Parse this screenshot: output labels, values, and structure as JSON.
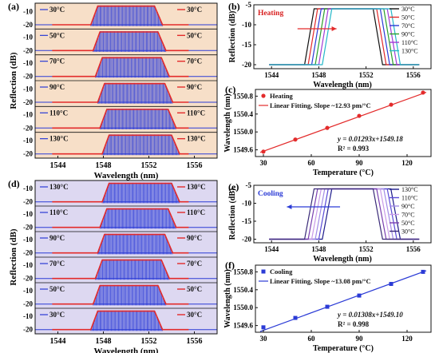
{
  "colors": {
    "heat_bg": "#f7dfc8",
    "cool_bg": "#ddd8f1",
    "blue": "#2b3bd6",
    "red": "#e32b2b",
    "heat_text": "#d81f1f",
    "cool_text": "#2b3bd6"
  },
  "chart_data": [
    {
      "id": "a",
      "panel_label": "(a)",
      "type": "line",
      "title": "",
      "xlabel": "Wavelength (nm)",
      "ylabel": "Reflection (dB)",
      "xlim": [
        1542,
        1558
      ],
      "ylim": [
        -22,
        -5
      ],
      "x_ticks": [
        "1544",
        "1548",
        "1552",
        "1556"
      ],
      "y_ticks": [
        "-10",
        "-20"
      ],
      "series": [
        {
          "name": "30°C",
          "x": [
            1543.5,
            1546.9,
            1547.5,
            1552.5,
            1553.2,
            1555.5
          ],
          "values": [
            -20,
            -20,
            -6,
            -6,
            -20,
            -20
          ]
        },
        {
          "name": "50°C",
          "x": [
            1543.5,
            1547.1,
            1547.7,
            1552.8,
            1553.5,
            1555.5
          ],
          "values": [
            -20,
            -20,
            -6,
            -6,
            -20,
            -20
          ]
        },
        {
          "name": "70°C",
          "x": [
            1543.5,
            1547.3,
            1547.9,
            1553.1,
            1553.8,
            1555.5
          ],
          "values": [
            -20,
            -20,
            -6,
            -6,
            -20,
            -20
          ]
        },
        {
          "name": "90°C",
          "x": [
            1543.5,
            1547.5,
            1548.1,
            1553.4,
            1554.1,
            1555.5
          ],
          "values": [
            -20,
            -20,
            -6,
            -6,
            -20,
            -20
          ]
        },
        {
          "name": "110°C",
          "x": [
            1543.5,
            1547.7,
            1548.3,
            1553.7,
            1554.4,
            1555.5
          ],
          "values": [
            -20,
            -20,
            -6,
            -6,
            -20,
            -20
          ]
        },
        {
          "name": "130°C",
          "x": [
            1543.5,
            1547.9,
            1548.5,
            1554.0,
            1554.7,
            1555.5
          ],
          "values": [
            -20,
            -20,
            -6,
            -6,
            -20,
            -20
          ]
        }
      ]
    },
    {
      "id": "b",
      "panel_label": "(b)",
      "type": "line",
      "title": "Heating",
      "xlabel": "Wavelength (nm)",
      "ylabel": "Reflection (dB)",
      "xlim": [
        1542.5,
        1557.5
      ],
      "ylim": [
        -21,
        -5
      ],
      "x_ticks": [
        1544,
        1548,
        1552,
        1556
      ],
      "y_ticks": [
        -5,
        -10,
        -15,
        -20
      ],
      "legend_position": "right",
      "series": [
        {
          "name": "30°C",
          "color": "#111111",
          "x": [
            1543.8,
            1546.8,
            1547.6,
            1552.6,
            1553.4,
            1556.5
          ],
          "values": [
            -20,
            -20,
            -6,
            -6,
            -20,
            -20
          ]
        },
        {
          "name": "50°C",
          "color": "#e32b2b",
          "x": [
            1543.8,
            1547.1,
            1547.9,
            1552.9,
            1553.7,
            1556.5
          ],
          "values": [
            -20,
            -20,
            -6,
            -6,
            -20,
            -20
          ]
        },
        {
          "name": "70°C",
          "color": "#2b3bd6",
          "x": [
            1543.8,
            1547.4,
            1548.2,
            1553.2,
            1554.0,
            1556.5
          ],
          "values": [
            -20,
            -20,
            -6,
            -6,
            -20,
            -20
          ]
        },
        {
          "name": "90°C",
          "color": "#2ba02b",
          "x": [
            1543.8,
            1547.7,
            1548.5,
            1553.5,
            1554.3,
            1556.5
          ],
          "values": [
            -20,
            -20,
            -6,
            -6,
            -20,
            -20
          ]
        },
        {
          "name": "110°C",
          "color": "#a23bd6",
          "x": [
            1543.8,
            1548.0,
            1548.8,
            1553.8,
            1554.6,
            1556.5
          ],
          "values": [
            -20,
            -20,
            -6,
            -6,
            -20,
            -20
          ]
        },
        {
          "name": "130°C",
          "color": "#25b8c9",
          "x": [
            1543.8,
            1548.3,
            1549.1,
            1554.1,
            1554.9,
            1556.5
          ],
          "values": [
            -20,
            -20,
            -6,
            -6,
            -20,
            -20
          ]
        }
      ]
    },
    {
      "id": "c",
      "panel_label": "(c)",
      "type": "scatter",
      "title": "",
      "xlabel": "Temperature (°C)",
      "ylabel": "Wavelength (nm)",
      "xlim": [
        25,
        135
      ],
      "ylim": [
        1549.45,
        1550.95
      ],
      "x_ticks": [
        30,
        60,
        90,
        120
      ],
      "y_ticks": [
        1549.6,
        1550.0,
        1550.4,
        1550.8
      ],
      "y_tick_labels": [
        "1549.6",
        "1550.0",
        "1550.4",
        "1550.8"
      ],
      "series": [
        {
          "name": "Heating",
          "x": [
            30,
            50,
            70,
            90,
            110,
            130
          ],
          "values": [
            1549.56,
            1549.83,
            1550.09,
            1550.36,
            1550.61,
            1550.88
          ]
        }
      ],
      "fit": {
        "label": "Linear Fitting, Slope ~12.93 pm/°C",
        "slope": 0.01293,
        "intercept": 1549.18,
        "equation": "y = 0.01293x+1549.18",
        "r2": "R² = 0.993"
      }
    },
    {
      "id": "d",
      "panel_label": "(d)",
      "type": "line",
      "title": "",
      "xlabel": "Wavelength (nm)",
      "ylabel": "Reflection (dB)",
      "xlim": [
        1542,
        1558
      ],
      "ylim": [
        -22,
        -5
      ],
      "x_ticks": [
        "1544",
        "1548",
        "1552",
        "1556"
      ],
      "y_ticks": [
        "-10",
        "-20"
      ],
      "series": [
        {
          "name": "130°C",
          "x": [
            1543.5,
            1547.9,
            1548.5,
            1554.0,
            1554.7,
            1555.5
          ],
          "values": [
            -20,
            -20,
            -6,
            -6,
            -20,
            -20
          ]
        },
        {
          "name": "110°C",
          "x": [
            1543.5,
            1547.7,
            1548.3,
            1553.7,
            1554.4,
            1555.5
          ],
          "values": [
            -20,
            -20,
            -6,
            -6,
            -20,
            -20
          ]
        },
        {
          "name": "90°C",
          "x": [
            1543.5,
            1547.5,
            1548.1,
            1553.4,
            1554.1,
            1555.5
          ],
          "values": [
            -20,
            -20,
            -6,
            -6,
            -20,
            -20
          ]
        },
        {
          "name": "70°C",
          "x": [
            1543.5,
            1547.3,
            1547.9,
            1553.1,
            1553.8,
            1555.5
          ],
          "values": [
            -20,
            -20,
            -6,
            -6,
            -20,
            -20
          ]
        },
        {
          "name": "50°C",
          "x": [
            1543.5,
            1547.1,
            1547.7,
            1552.8,
            1553.5,
            1555.5
          ],
          "values": [
            -20,
            -20,
            -6,
            -6,
            -20,
            -20
          ]
        },
        {
          "name": "30°C",
          "x": [
            1543.5,
            1546.9,
            1547.5,
            1552.5,
            1553.2,
            1555.5
          ],
          "values": [
            -20,
            -20,
            -6,
            -6,
            -20,
            -20
          ]
        }
      ]
    },
    {
      "id": "e",
      "panel_label": "(e)",
      "type": "line",
      "title": "Cooling",
      "xlabel": "Wavelength (nm)",
      "ylabel": "Reflection (dB)",
      "xlim": [
        1542.5,
        1557.5
      ],
      "ylim": [
        -21,
        -5
      ],
      "x_ticks": [
        1544,
        1548,
        1552,
        1556
      ],
      "y_ticks": [
        -5,
        -10,
        -15,
        -20
      ],
      "legend_position": "right",
      "series": [
        {
          "name": "130°C",
          "color": "#1c1a8a",
          "x": [
            1543.8,
            1548.3,
            1549.1,
            1554.1,
            1554.9,
            1556.5
          ],
          "values": [
            -20,
            -20,
            -6,
            -6,
            -20,
            -20
          ]
        },
        {
          "name": "110°C",
          "color": "#5a4bd6",
          "x": [
            1543.8,
            1548.0,
            1548.8,
            1553.8,
            1554.6,
            1556.5
          ],
          "values": [
            -20,
            -20,
            -6,
            -6,
            -20,
            -20
          ]
        },
        {
          "name": "90°C",
          "color": "#a38ce6",
          "x": [
            1543.8,
            1547.7,
            1548.5,
            1553.5,
            1554.3,
            1556.5
          ],
          "values": [
            -20,
            -20,
            -6,
            -6,
            -20,
            -20
          ]
        },
        {
          "name": "70°C",
          "color": "#c99be8",
          "x": [
            1543.8,
            1547.4,
            1548.2,
            1553.2,
            1554.0,
            1556.5
          ],
          "values": [
            -20,
            -20,
            -6,
            -6,
            -20,
            -20
          ]
        },
        {
          "name": "50°C",
          "color": "#7a3fb0",
          "x": [
            1543.8,
            1547.1,
            1547.9,
            1552.9,
            1553.7,
            1556.5
          ],
          "values": [
            -20,
            -20,
            -6,
            -6,
            -20,
            -20
          ]
        },
        {
          "name": "30°C",
          "color": "#3a2a78",
          "x": [
            1543.8,
            1546.8,
            1547.6,
            1552.6,
            1553.4,
            1556.5
          ],
          "values": [
            -20,
            -20,
            -6,
            -6,
            -20,
            -20
          ]
        }
      ]
    },
    {
      "id": "f",
      "panel_label": "(f)",
      "type": "scatter",
      "title": "",
      "xlabel": "Temperature (°C)",
      "ylabel": "Wavelength (nm)",
      "xlim": [
        25,
        135
      ],
      "ylim": [
        1549.45,
        1550.95
      ],
      "x_ticks": [
        30,
        60,
        90,
        120
      ],
      "y_ticks": [
        1549.6,
        1550.0,
        1550.4,
        1550.8
      ],
      "y_tick_labels": [
        "1549.6",
        "1550.0",
        "1550.4",
        "1550.8"
      ],
      "series": [
        {
          "name": "Cooling",
          "x": [
            30,
            50,
            70,
            90,
            110,
            130
          ],
          "values": [
            1549.56,
            1549.77,
            1550.02,
            1550.27,
            1550.53,
            1550.8
          ]
        }
      ],
      "fit": {
        "label": "Linear Fitting, Slope ~13.08 pm/°C",
        "slope": 0.01308,
        "intercept": 1549.1,
        "equation": "y = 0.01308x+1549.10",
        "r2": "R² = 0.998"
      }
    }
  ]
}
